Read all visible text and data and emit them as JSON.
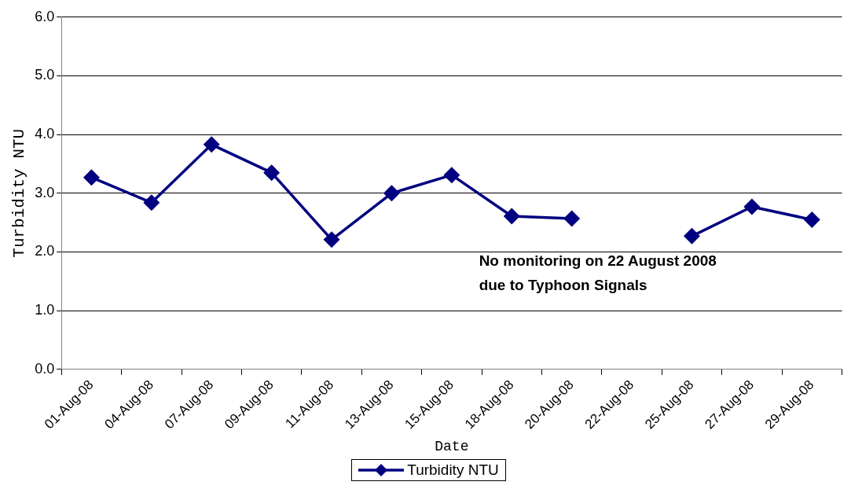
{
  "chart_data": {
    "type": "line",
    "xlabel": "Date",
    "ylabel": "Turbidity NTU",
    "categories": [
      "01-Aug-08",
      "04-Aug-08",
      "07-Aug-08",
      "09-Aug-08",
      "11-Aug-08",
      "13-Aug-08",
      "15-Aug-08",
      "18-Aug-08",
      "20-Aug-08",
      "22-Aug-08",
      "25-Aug-08",
      "27-Aug-08",
      "29-Aug-08"
    ],
    "series": [
      {
        "name": "Turbidity NTU",
        "color": "#000080",
        "values": [
          3.27,
          2.84,
          3.83,
          3.35,
          2.21,
          3.0,
          3.31,
          2.61,
          2.57,
          null,
          2.27,
          2.77,
          2.55
        ]
      }
    ],
    "ylim": [
      0,
      6
    ],
    "yticks": [
      {
        "value": 0,
        "label": "0.0"
      },
      {
        "value": 1,
        "label": "1.0"
      },
      {
        "value": 2,
        "label": "2.0"
      },
      {
        "value": 3,
        "label": "3.0"
      },
      {
        "value": 4,
        "label": "4.0"
      },
      {
        "value": 5,
        "label": "5.0"
      },
      {
        "value": 6,
        "label": "6.0"
      }
    ],
    "grid": "y",
    "legend": "bottom",
    "marker": "diamond",
    "line_style": "solid",
    "annotations": [
      "No monitoring on 22 August 2008\ndue to Typhoon Signals"
    ]
  }
}
